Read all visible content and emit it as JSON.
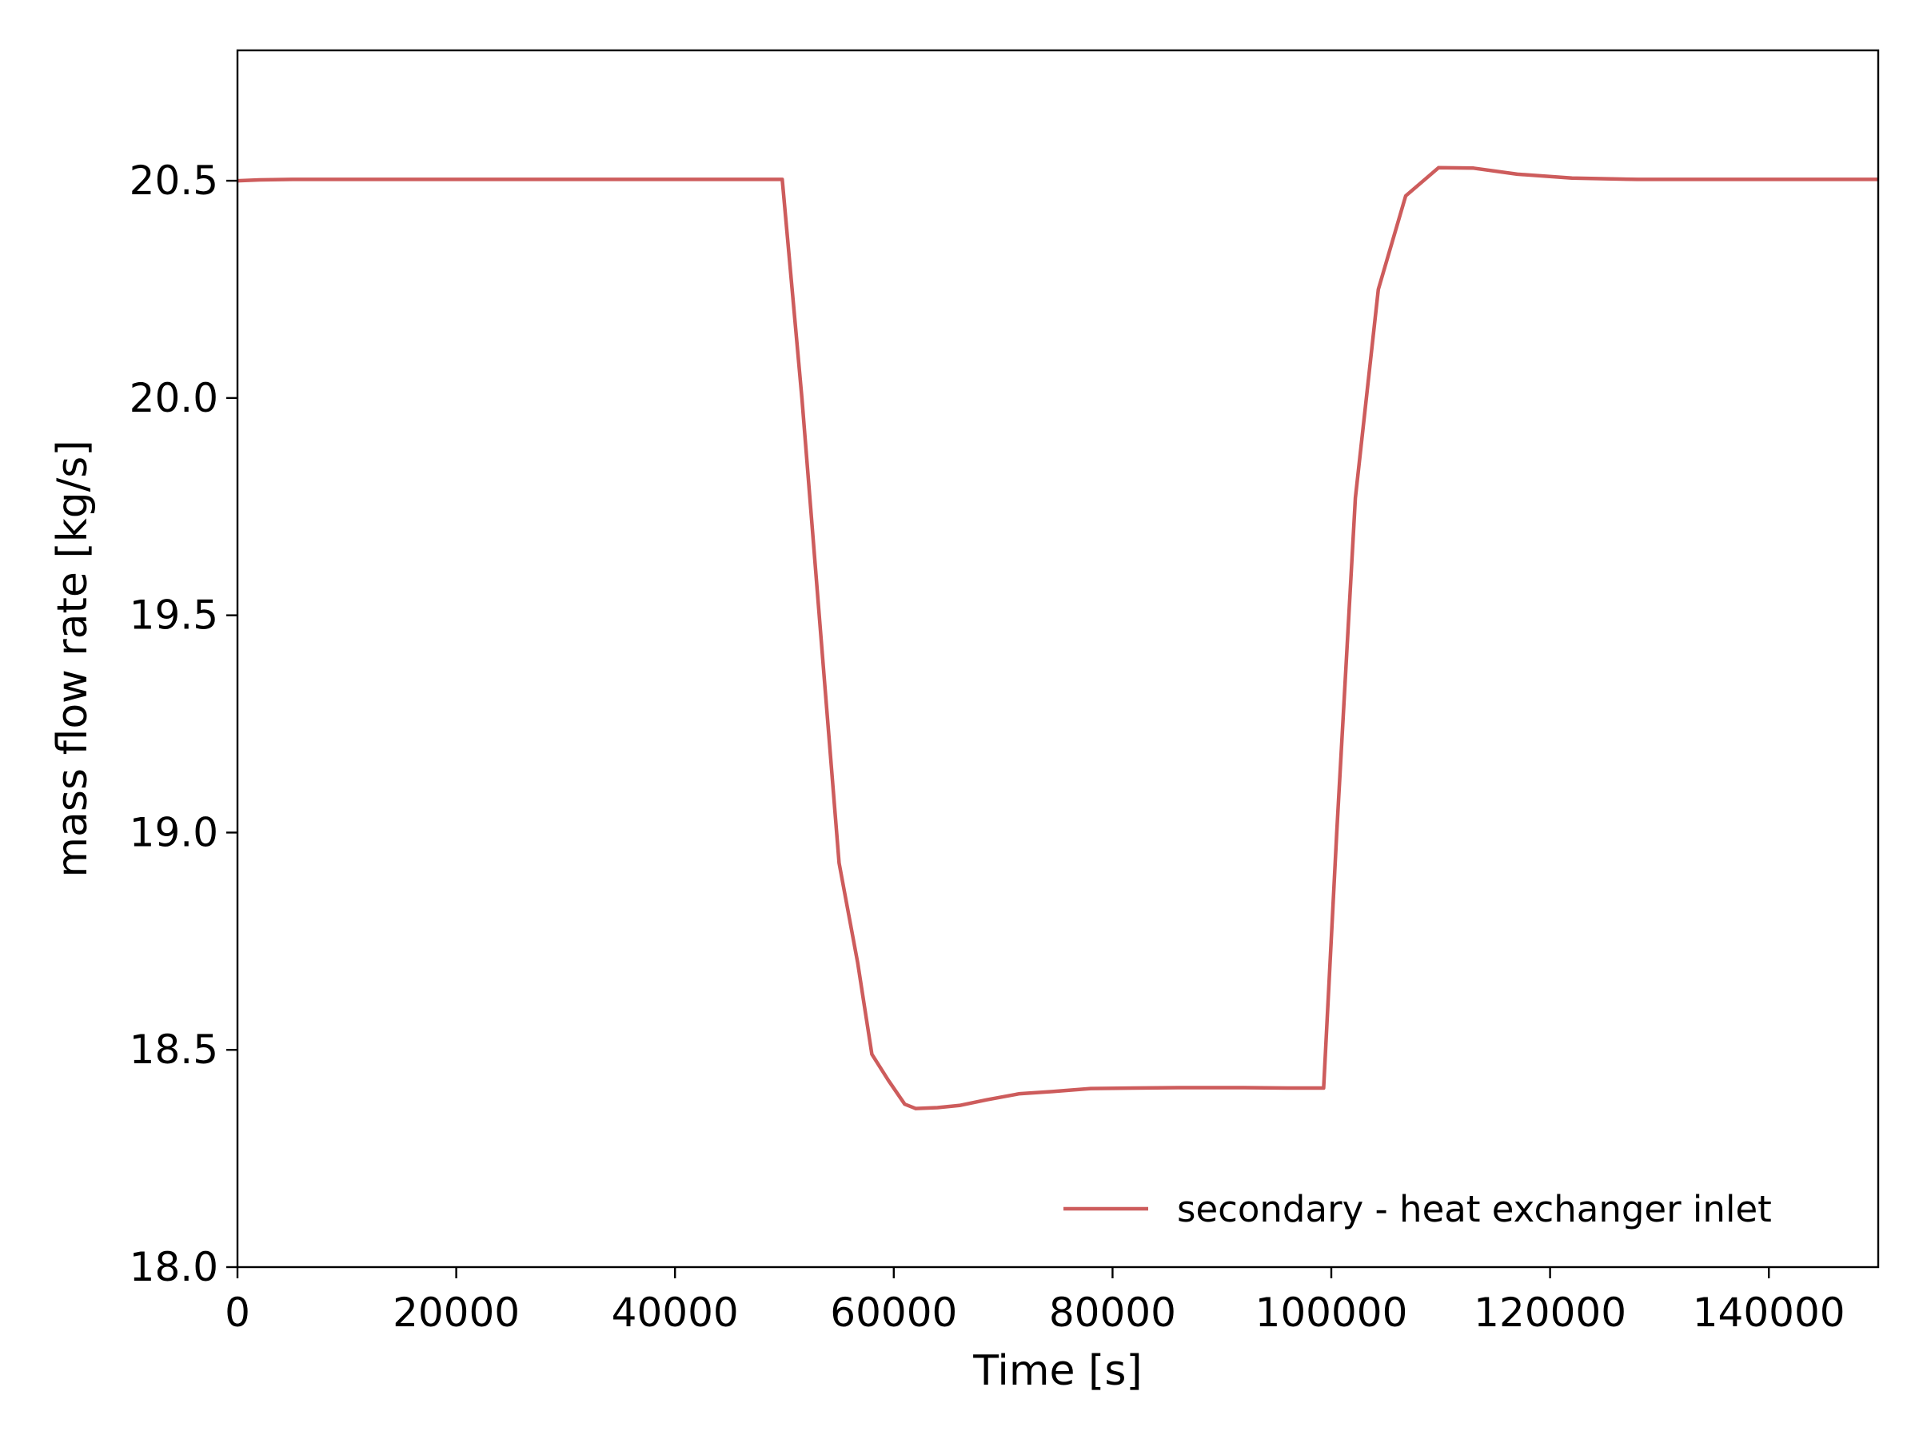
{
  "chart_data": {
    "type": "line",
    "xlabel": "Time [s]",
    "ylabel": "mass flow rate [kg/s]",
    "xlim": [
      0,
      150000
    ],
    "ylim": [
      18.0,
      20.8
    ],
    "xticks": [
      0,
      20000,
      40000,
      60000,
      80000,
      100000,
      120000,
      140000
    ],
    "xtick_labels": [
      "0",
      "20000",
      "40000",
      "60000",
      "80000",
      "100000",
      "120000",
      "140000"
    ],
    "yticks": [
      18.0,
      18.5,
      19.0,
      19.5,
      20.0,
      20.5
    ],
    "ytick_labels": [
      "18.0",
      "18.5",
      "19.0",
      "19.5",
      "20.0",
      "20.5"
    ],
    "grid": false,
    "legend_position": "lower-right",
    "series": [
      {
        "name": "secondary - heat exchanger inlet",
        "color": "#cd5c5c",
        "x": [
          0,
          2000,
          5000,
          10000,
          20000,
          30000,
          40000,
          45000,
          49800,
          51600,
          53500,
          55000,
          56700,
          58000,
          59500,
          61000,
          62000,
          64000,
          66000,
          68500,
          71500,
          74500,
          78000,
          82000,
          86000,
          92000,
          96000,
          99300,
          100500,
          102200,
          104300,
          106800,
          109800,
          113000,
          117000,
          122000,
          128000,
          135000,
          142000,
          150000
        ],
        "y": [
          20.5,
          20.502,
          20.503,
          20.503,
          20.503,
          20.503,
          20.503,
          20.503,
          20.503,
          20.0,
          19.4,
          18.93,
          18.7,
          18.49,
          18.43,
          18.375,
          18.365,
          18.367,
          18.372,
          18.385,
          18.399,
          18.404,
          18.411,
          18.412,
          18.413,
          18.413,
          18.412,
          18.412,
          19.0,
          19.77,
          20.25,
          20.465,
          20.53,
          20.529,
          20.515,
          20.506,
          20.503,
          20.503,
          20.503,
          20.503
        ]
      }
    ]
  }
}
